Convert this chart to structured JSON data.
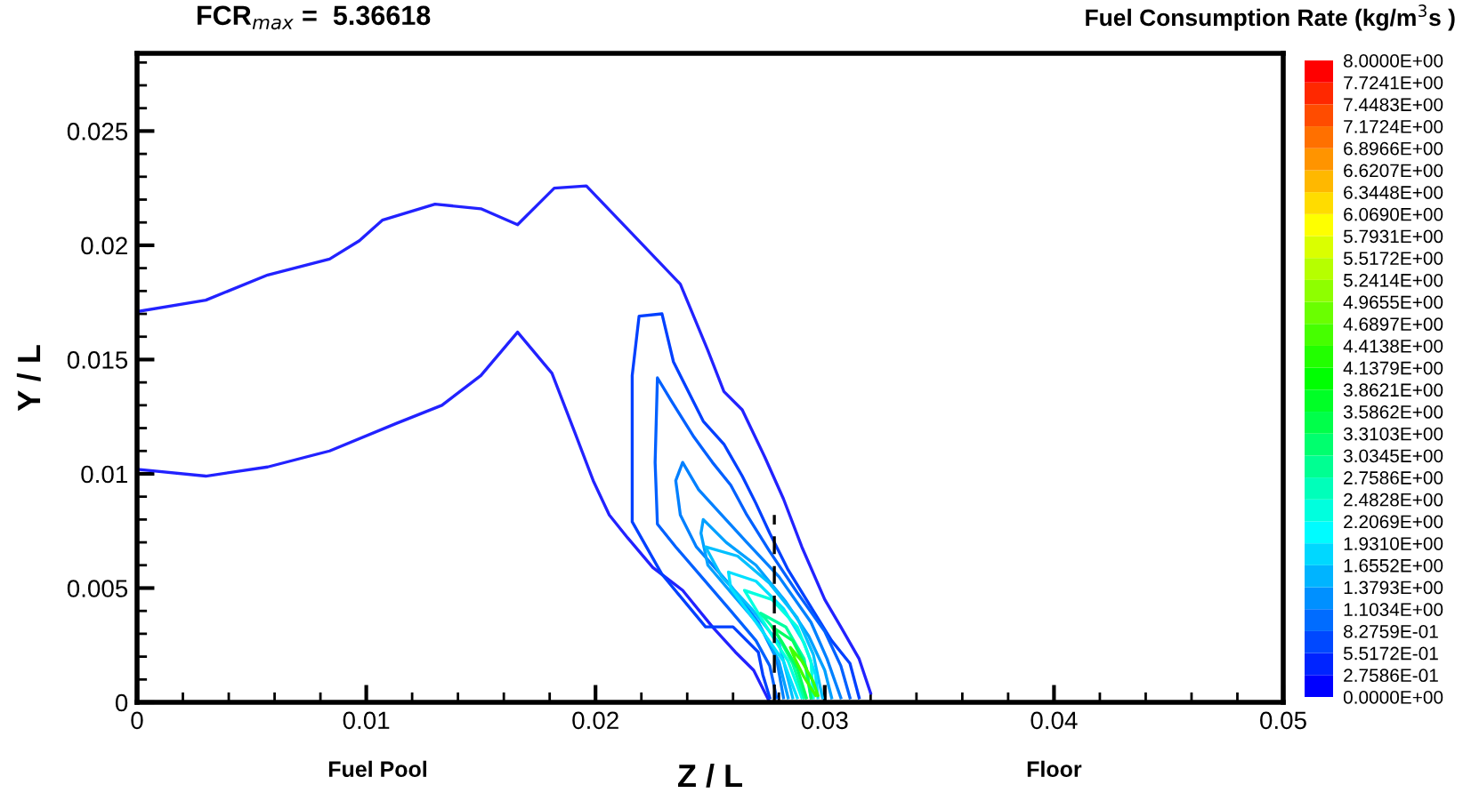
{
  "chart_data": {
    "type": "line",
    "title": "FCR$_{max}$ =  5.36618",
    "xlabel": "Z / L",
    "ylabel": "Y / L",
    "clabel": "Fuel Consumption Rate (kg/m$^{3}$s )",
    "annotations": [
      "Fuel Pool",
      "Floor"
    ],
    "xlim": [
      0,
      0.05
    ],
    "xticks": [
      0,
      0.01,
      0.02,
      0.03,
      0.04,
      0.05
    ],
    "ylim": [
      0,
      0.0284
    ],
    "yticks": [
      0,
      0.005,
      0.01,
      0.015,
      0.02,
      0.025
    ],
    "clim": [
      0,
      8
    ],
    "cticks": [
      {
        "value": 0,
        "label": "0.0000E+00"
      },
      {
        "value": 0.27586,
        "label": "2.7586E-01"
      },
      {
        "value": 0.55172,
        "label": "5.5172E-01"
      },
      {
        "value": 0.82759,
        "label": "8.2759E-01"
      },
      {
        "value": 1.1034,
        "label": "1.1034E+00"
      },
      {
        "value": 1.3793,
        "label": "1.3793E+00"
      },
      {
        "value": 1.6552,
        "label": "1.6552E+00"
      },
      {
        "value": 1.931,
        "label": "1.9310E+00"
      },
      {
        "value": 2.2069,
        "label": "2.2069E+00"
      },
      {
        "value": 2.4828,
        "label": "2.4828E+00"
      },
      {
        "value": 2.7586,
        "label": "2.7586E+00"
      },
      {
        "value": 3.0345,
        "label": "3.0345E+00"
      },
      {
        "value": 3.3103,
        "label": "3.3103E+00"
      },
      {
        "value": 3.5862,
        "label": "3.5862E+00"
      },
      {
        "value": 3.8621,
        "label": "3.8621E+00"
      },
      {
        "value": 4.1379,
        "label": "4.1379E+00"
      },
      {
        "value": 4.4138,
        "label": "4.4138E+00"
      },
      {
        "value": 4.6897,
        "label": "4.6897E+00"
      },
      {
        "value": 4.9655,
        "label": "4.9655E+00"
      },
      {
        "value": 5.2414,
        "label": "5.2414E+00"
      },
      {
        "value": 5.5172,
        "label": "5.5172E+00"
      },
      {
        "value": 5.7931,
        "label": "5.7931E+00"
      },
      {
        "value": 6.069,
        "label": "6.0690E+00"
      },
      {
        "value": 6.3448,
        "label": "6.3448E+00"
      },
      {
        "value": 6.6207,
        "label": "6.6207E+00"
      },
      {
        "value": 6.8966,
        "label": "6.8966E+00"
      },
      {
        "value": 7.1724,
        "label": "7.1724E+00"
      },
      {
        "value": 7.4483,
        "label": "7.4483E+00"
      },
      {
        "value": 7.7241,
        "label": "7.7241E+00"
      },
      {
        "value": 8,
        "label": "8.0000E+00"
      }
    ],
    "grid": false,
    "legend": false,
    "marker": "none",
    "line_style": "solid",
    "series": [
      {
        "color": "#2222ff",
        "x": [
          0,
          0.003,
          0.0057,
          0.0084,
          0.0097,
          0.0107,
          0.013,
          0.015,
          0.0166,
          0.0182,
          0.0196,
          0.0237,
          0.0249,
          0.0256,
          0.0264,
          0.0274,
          0.0282,
          0.029,
          0.03,
          0.0307,
          0.0315,
          0.032
        ],
        "values": [
          0.0171,
          0.0176,
          0.0187,
          0.0194,
          0.0202,
          0.0211,
          0.0218,
          0.0216,
          0.0209,
          0.0225,
          0.0226,
          0.0183,
          0.0154,
          0.0136,
          0.0128,
          0.0107,
          0.0089,
          0.0068,
          0.0045,
          0.0033,
          0.0019,
          0.0004
        ]
      },
      {
        "color": "#2222ff",
        "x": [
          0,
          0.003,
          0.0057,
          0.0084,
          0.0113,
          0.0133,
          0.015,
          0.0166,
          0.0181,
          0.0191,
          0.0199,
          0.0206,
          0.0214,
          0.0225,
          0.0238,
          0.0251,
          0.0261,
          0.0269,
          0.0274,
          0.0276
        ],
        "values": [
          0.0102,
          0.0099,
          0.0103,
          0.011,
          0.0122,
          0.013,
          0.0143,
          0.0162,
          0.0144,
          0.0118,
          0.0097,
          0.0082,
          0.0072,
          0.0059,
          0.0049,
          0.0033,
          0.0022,
          0.0014,
          0.0004,
          0
        ]
      },
      {
        "color": "#0040ff",
        "x": [
          0.0276,
          0.0273,
          0.0271,
          0.026,
          0.0248,
          0.0229,
          0.0229,
          0.0216,
          0.0216,
          0.0219,
          0.0229,
          0.0234,
          0.0243,
          0.0247,
          0.0256,
          0.0264,
          0.027,
          0.0276,
          0.0284,
          0.0295,
          0.0303,
          0.0311,
          0.0315
        ],
        "values": [
          0.0002,
          0.0012,
          0.0022,
          0.0033,
          0.0033,
          0.0056,
          0.0056,
          0.0079,
          0.0143,
          0.0169,
          0.017,
          0.0149,
          0.0131,
          0.0123,
          0.0113,
          0.0099,
          0.0087,
          0.0074,
          0.0058,
          0.004,
          0.0027,
          0.0017,
          0.0002
        ]
      },
      {
        "color": "#0060ff",
        "x": [
          0.0279,
          0.0276,
          0.027,
          0.0259,
          0.0247,
          0.0235,
          0.0227,
          0.0226,
          0.0227,
          0.0233,
          0.0243,
          0.0251,
          0.0259,
          0.0266,
          0.0276,
          0.0288,
          0.03,
          0.0307,
          0.0311
        ],
        "values": [
          0.0002,
          0.0016,
          0.0027,
          0.004,
          0.0054,
          0.0068,
          0.0078,
          0.0105,
          0.0142,
          0.0132,
          0.0116,
          0.0105,
          0.0095,
          0.0082,
          0.0066,
          0.0048,
          0.0031,
          0.0016,
          0.0002
        ]
      },
      {
        "color": "#0080ff",
        "x": [
          0.0282,
          0.0279,
          0.0271,
          0.0259,
          0.0244,
          0.0237,
          0.0235,
          0.0238,
          0.0245,
          0.0255,
          0.0266,
          0.028,
          0.0294,
          0.0301,
          0.0307
        ],
        "values": [
          0.0002,
          0.0019,
          0.0035,
          0.0051,
          0.0068,
          0.0082,
          0.0097,
          0.0105,
          0.0093,
          0.0082,
          0.007,
          0.0055,
          0.0035,
          0.0019,
          0.0002
        ]
      },
      {
        "color": "#00a0ff",
        "x": [
          0.0284,
          0.028,
          0.0272,
          0.026,
          0.0249,
          0.0246,
          0.0247,
          0.0257,
          0.027,
          0.0283,
          0.0293,
          0.03,
          0.0303
        ],
        "values": [
          0.0002,
          0.0018,
          0.0033,
          0.0047,
          0.006,
          0.0074,
          0.008,
          0.007,
          0.006,
          0.0044,
          0.0029,
          0.0014,
          0.0002
        ]
      },
      {
        "color": "#00c0ff",
        "x": [
          0.0286,
          0.028,
          0.0268,
          0.0255,
          0.0248,
          0.0262,
          0.0276,
          0.0288,
          0.0295,
          0.0299
        ],
        "values": [
          0.0002,
          0.0026,
          0.0041,
          0.0055,
          0.0068,
          0.0064,
          0.0052,
          0.0037,
          0.0021,
          0.0002
        ]
      },
      {
        "color": "#00e0ff",
        "x": [
          0.0288,
          0.0282,
          0.027,
          0.0259,
          0.0258,
          0.027,
          0.0282,
          0.0291,
          0.0296,
          0.0297
        ],
        "values": [
          0.0002,
          0.0018,
          0.0035,
          0.005,
          0.0057,
          0.0053,
          0.0041,
          0.0026,
          0.0012,
          0.0002
        ]
      },
      {
        "color": "#00ffe0",
        "x": [
          0.029,
          0.0284,
          0.0274,
          0.0265,
          0.0277,
          0.0288,
          0.0294,
          0.0295
        ],
        "values": [
          0.0002,
          0.0018,
          0.0034,
          0.0049,
          0.0045,
          0.0033,
          0.0018,
          0.0002
        ]
      },
      {
        "color": "#00ffa0",
        "x": [
          0.0291,
          0.0286,
          0.0278,
          0.0272,
          0.0283,
          0.0291,
          0.0294
        ],
        "values": [
          0.0002,
          0.0017,
          0.0032,
          0.0039,
          0.0033,
          0.0019,
          0.0002
        ]
      },
      {
        "color": "#00ff60",
        "x": [
          0.0292,
          0.0288,
          0.0281,
          0.0277,
          0.0286,
          0.0292,
          0.0294
        ],
        "values": [
          0.0002,
          0.0015,
          0.0027,
          0.0033,
          0.0027,
          0.0015,
          0.0002
        ]
      },
      {
        "color": "#40ff00",
        "x": [
          0.0296,
          0.0291,
          0.0287,
          0.0285,
          0.029,
          0.0295,
          0.0297
        ],
        "values": [
          0.0003,
          0.0011,
          0.0019,
          0.0024,
          0.0018,
          0.0009,
          0.0003
        ]
      },
      {
        "color": "#000000",
        "line_style": "dashed",
        "x": [
          0.0278,
          0.0278
        ],
        "values": [
          0,
          0.0082
        ]
      }
    ]
  }
}
